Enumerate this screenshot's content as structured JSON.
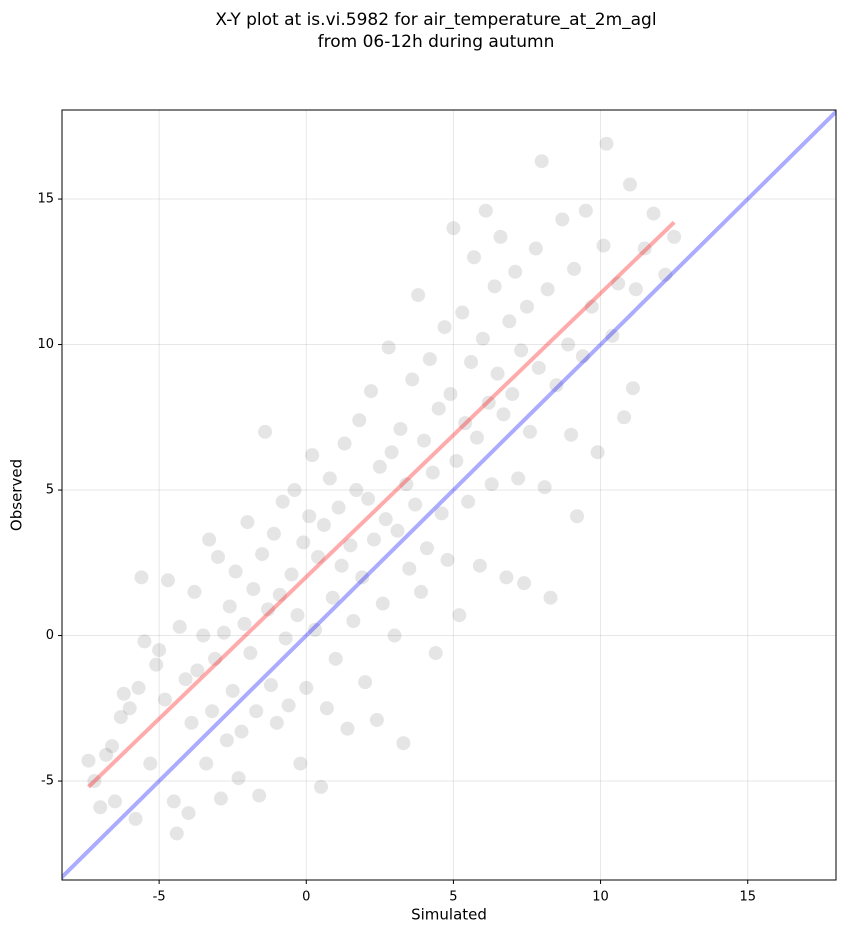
{
  "chart_data": {
    "type": "scatter",
    "title": [
      "X-Y plot at is.vi.5982 for air_temperature_at_2m_agl",
      "from 06-12h during autumn"
    ],
    "xlabel": "Simulated",
    "ylabel": "Observed",
    "xlim": [
      -8.3,
      18.0
    ],
    "ylim": [
      -8.4,
      18.06
    ],
    "xticks": [
      -5,
      0,
      5,
      10,
      15
    ],
    "yticks": [
      -5,
      0,
      5,
      10,
      15
    ],
    "grid": true,
    "series": [
      {
        "color": "#000000",
        "x": [
          -7.4,
          -7.2,
          -7.0,
          -6.8,
          -6.6,
          -6.5,
          -6.3,
          -6.2,
          -6.0,
          -5.8,
          -5.7,
          -5.6,
          -5.5,
          -5.3,
          -5.1,
          -5.0,
          -4.8,
          -4.7,
          -4.5,
          -4.4,
          -4.3,
          -4.1,
          -4.0,
          -3.9,
          -3.8,
          -3.7,
          -3.5,
          -3.4,
          -3.3,
          -3.2,
          -3.1,
          -3.0,
          -2.9,
          -2.8,
          -2.7,
          -2.6,
          -2.5,
          -2.4,
          -2.3,
          -2.2,
          -2.1,
          -2.0,
          -1.9,
          -1.8,
          -1.7,
          -1.6,
          -1.5,
          -1.4,
          -1.3,
          -1.2,
          -1.1,
          -1.0,
          -0.9,
          -0.8,
          -0.7,
          -0.6,
          -0.5,
          -0.4,
          -0.3,
          -0.2,
          -0.1,
          0.0,
          0.1,
          0.2,
          0.3,
          0.4,
          0.5,
          0.6,
          0.7,
          0.8,
          0.9,
          1.0,
          1.1,
          1.2,
          1.3,
          1.4,
          1.5,
          1.6,
          1.7,
          1.8,
          1.9,
          2.0,
          2.1,
          2.2,
          2.3,
          2.4,
          2.5,
          2.6,
          2.7,
          2.8,
          2.9,
          3.0,
          3.1,
          3.2,
          3.3,
          3.4,
          3.5,
          3.6,
          3.7,
          3.8,
          3.9,
          4.0,
          4.1,
          4.2,
          4.3,
          4.4,
          4.5,
          4.6,
          4.7,
          4.8,
          4.9,
          5.0,
          5.1,
          5.2,
          5.3,
          5.4,
          5.5,
          5.6,
          5.7,
          5.8,
          5.9,
          6.0,
          6.1,
          6.2,
          6.3,
          6.4,
          6.5,
          6.6,
          6.7,
          6.8,
          6.9,
          7.0,
          7.1,
          7.2,
          7.3,
          7.4,
          7.5,
          7.6,
          7.8,
          7.9,
          8.0,
          8.1,
          8.2,
          8.3,
          8.5,
          8.7,
          8.9,
          9.0,
          9.1,
          9.2,
          9.4,
          9.5,
          9.7,
          9.9,
          10.1,
          10.2,
          10.4,
          10.6,
          10.8,
          11.0,
          11.1,
          11.2,
          11.5,
          11.8,
          12.2,
          12.5
        ],
        "y": [
          -4.3,
          -5.0,
          -5.9,
          -4.1,
          -3.8,
          -5.7,
          -2.8,
          -2.0,
          -2.5,
          -6.3,
          -1.8,
          2.0,
          -0.2,
          -4.4,
          -1.0,
          -0.5,
          -2.2,
          1.9,
          -5.7,
          -6.8,
          0.3,
          -1.5,
          -6.1,
          -3.0,
          1.5,
          -1.2,
          0.0,
          -4.4,
          3.3,
          -2.6,
          -0.8,
          2.7,
          -5.6,
          0.1,
          -3.6,
          1.0,
          -1.9,
          2.2,
          -4.9,
          -3.3,
          0.4,
          3.9,
          -0.6,
          1.6,
          -2.6,
          -5.5,
          2.8,
          7.0,
          0.9,
          -1.7,
          3.5,
          -3.0,
          1.4,
          4.6,
          -0.1,
          -2.4,
          2.1,
          5.0,
          0.7,
          -4.4,
          3.2,
          -1.8,
          4.1,
          6.2,
          0.2,
          2.7,
          -5.2,
          3.8,
          -2.5,
          5.4,
          1.3,
          -0.8,
          4.4,
          2.4,
          6.6,
          -3.2,
          3.1,
          0.5,
          5.0,
          7.4,
          2.0,
          -1.6,
          4.7,
          8.4,
          3.3,
          -2.9,
          5.8,
          1.1,
          4.0,
          9.9,
          6.3,
          0.0,
          3.6,
          7.1,
          -3.7,
          5.2,
          2.3,
          8.8,
          4.5,
          11.7,
          1.5,
          6.7,
          3.0,
          9.5,
          5.6,
          -0.6,
          7.8,
          4.2,
          10.6,
          2.6,
          8.3,
          14.0,
          6.0,
          0.7,
          11.1,
          7.3,
          4.6,
          9.4,
          13.0,
          6.8,
          2.4,
          10.2,
          14.6,
          8.0,
          5.2,
          12.0,
          9.0,
          13.7,
          7.6,
          2.0,
          10.8,
          8.3,
          12.5,
          5.4,
          9.8,
          1.8,
          11.3,
          7.0,
          13.3,
          9.2,
          16.3,
          5.1,
          11.9,
          1.3,
          8.6,
          14.3,
          10.0,
          6.9,
          12.6,
          4.1,
          9.6,
          14.6,
          11.3,
          6.3,
          13.4,
          16.9,
          10.3,
          12.1,
          7.5,
          15.5,
          8.5,
          11.9,
          13.3,
          14.5,
          12.4,
          13.7
        ]
      }
    ],
    "lines": [
      {
        "color": "#ff0000",
        "x": [
          -7.4,
          12.5
        ],
        "y": [
          -5.2,
          14.2
        ]
      },
      {
        "color": "#0000ff",
        "x": [
          -8.4,
          18.1
        ],
        "y": [
          -8.4,
          18.1
        ]
      }
    ]
  }
}
